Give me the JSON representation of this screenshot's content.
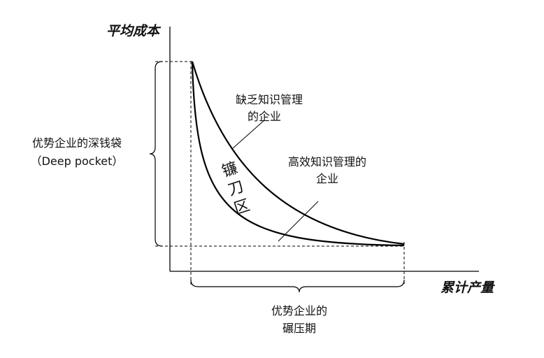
{
  "axes": {
    "y_label": "平均成本",
    "x_label": "累计产量"
  },
  "curves": {
    "upper_label": [
      "缺乏知识管理",
      "的企业"
    ],
    "lower_label": [
      "高效知识管理的",
      "企业"
    ]
  },
  "region_label": "镰刀区",
  "deep_pocket": [
    "优势企业的深钱袋",
    "（Deep pocket）"
  ],
  "crush_period": [
    "优势企业的",
    "碾压期"
  ]
}
